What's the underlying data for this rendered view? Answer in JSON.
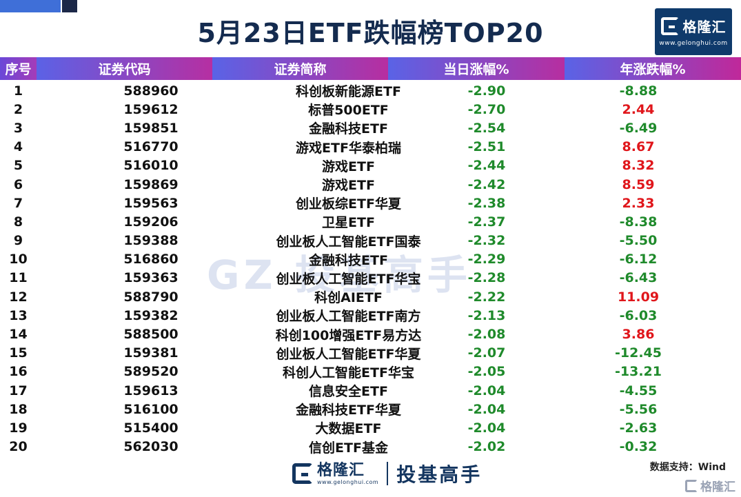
{
  "title": "5月23日ETF跌幅榜TOP20",
  "logo": {
    "name": "格隆汇",
    "url": "www.gelonghui.com"
  },
  "headers": [
    "序号",
    "证券代码",
    "证券简称",
    "当日涨幅%",
    "年涨跌幅%"
  ],
  "rows": [
    {
      "idx": "1",
      "code": "588960",
      "name": "科创板新能源ETF",
      "day": "-2.90",
      "year": "-8.88"
    },
    {
      "idx": "2",
      "code": "159612",
      "name": "标普500ETF",
      "day": "-2.70",
      "year": "2.44"
    },
    {
      "idx": "3",
      "code": "159851",
      "name": "金融科技ETF",
      "day": "-2.54",
      "year": "-6.49"
    },
    {
      "idx": "4",
      "code": "516770",
      "name": "游戏ETF华泰柏瑞",
      "day": "-2.51",
      "year": "8.67"
    },
    {
      "idx": "5",
      "code": "516010",
      "name": "游戏ETF",
      "day": "-2.44",
      "year": "8.32"
    },
    {
      "idx": "6",
      "code": "159869",
      "name": "游戏ETF",
      "day": "-2.42",
      "year": "8.59"
    },
    {
      "idx": "7",
      "code": "159563",
      "name": "创业板综ETF华夏",
      "day": "-2.38",
      "year": "2.33"
    },
    {
      "idx": "8",
      "code": "159206",
      "name": "卫星ETF",
      "day": "-2.37",
      "year": "-8.38"
    },
    {
      "idx": "9",
      "code": "159388",
      "name": "创业板人工智能ETF国泰",
      "day": "-2.32",
      "year": "-5.50"
    },
    {
      "idx": "10",
      "code": "516860",
      "name": "金融科技ETF",
      "day": "-2.29",
      "year": "-6.12"
    },
    {
      "idx": "11",
      "code": "159363",
      "name": "创业板人工智能ETF华宝",
      "day": "-2.28",
      "year": "-6.43"
    },
    {
      "idx": "12",
      "code": "588790",
      "name": "科创AIETF",
      "day": "-2.22",
      "year": "11.09"
    },
    {
      "idx": "13",
      "code": "159382",
      "name": "创业板人工智能ETF南方",
      "day": "-2.13",
      "year": "-6.03"
    },
    {
      "idx": "14",
      "code": "588500",
      "name": "科创100增强ETF易方达",
      "day": "-2.08",
      "year": "3.86"
    },
    {
      "idx": "15",
      "code": "159381",
      "name": "创业板人工智能ETF华夏",
      "day": "-2.07",
      "year": "-12.45"
    },
    {
      "idx": "16",
      "code": "589520",
      "name": "科创人工智能ETF华宝",
      "day": "-2.05",
      "year": "-13.21"
    },
    {
      "idx": "17",
      "code": "159613",
      "name": "信息安全ETF",
      "day": "-2.04",
      "year": "-4.55"
    },
    {
      "idx": "18",
      "code": "516100",
      "name": "金融科技ETF华夏",
      "day": "-2.04",
      "year": "-5.56"
    },
    {
      "idx": "19",
      "code": "515400",
      "name": "大数据ETF",
      "day": "-2.04",
      "year": "-2.63"
    },
    {
      "idx": "20",
      "code": "562030",
      "name": "信创ETF基金",
      "day": "-2.02",
      "year": "-0.32"
    }
  ],
  "watermark": "GZ 投基高手",
  "source": "数据支持：Wind",
  "footer": {
    "brand": "格隆汇",
    "url": "www.gelonghui.com",
    "slogan": "投基高手"
  },
  "corner_watermark": "格隆汇",
  "colors": {
    "up": "#e0161b",
    "down": "#1f8a2b",
    "title": "#142b4f",
    "logo_bg": "#0f3a6b"
  },
  "icons": {
    "logo": "gelonghui-g-icon"
  }
}
